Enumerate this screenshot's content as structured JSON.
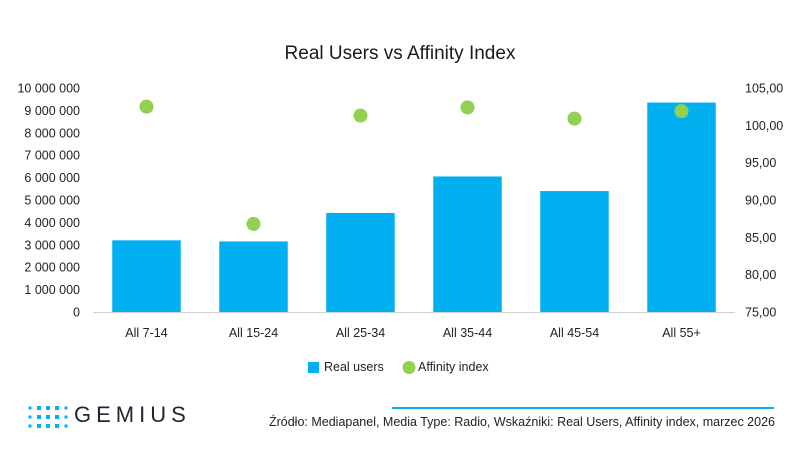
{
  "chart_data": {
    "type": "bar",
    "title": "Real Users vs Affinity Index",
    "categories": [
      "All 7-14",
      "All 15-24",
      "All 25-34",
      "All 35-44",
      "All 45-54",
      "All 55+"
    ],
    "series": [
      {
        "name": "Real users",
        "type": "bar",
        "axis": "left",
        "color": "#00b0f0",
        "values": [
          3200000,
          3150000,
          4420000,
          6050000,
          5400000,
          9350000
        ]
      },
      {
        "name": "Affinity index",
        "type": "scatter",
        "axis": "right",
        "color": "#92d050",
        "values": [
          102.5,
          86.8,
          101.3,
          102.4,
          100.9,
          101.9
        ]
      }
    ],
    "y_left": {
      "min": 0,
      "max": 10000000,
      "step": 1000000,
      "tick_labels": [
        "0",
        "1 000 000",
        "2 000 000",
        "3 000 000",
        "4 000 000",
        "5 000 000",
        "6 000 000",
        "7 000 000",
        "8 000 000",
        "9 000 000",
        "10 000 000"
      ]
    },
    "y_right": {
      "min": 75,
      "max": 105,
      "step": 5,
      "tick_labels": [
        "75,00",
        "80,00",
        "85,00",
        "90,00",
        "95,00",
        "100,00",
        "105,00"
      ]
    },
    "legend": {
      "position": "bottom",
      "items": [
        "Real users",
        "Affinity index"
      ]
    }
  },
  "brand": {
    "name": "GEMIUS",
    "dot_color": "#00b0f0"
  },
  "footer": {
    "source": "Źródło: Mediapanel, Media Type: Radio, Wskaźniki: Real Users, Affinity index, marzec 2026",
    "line_color": "#00b0f0"
  }
}
